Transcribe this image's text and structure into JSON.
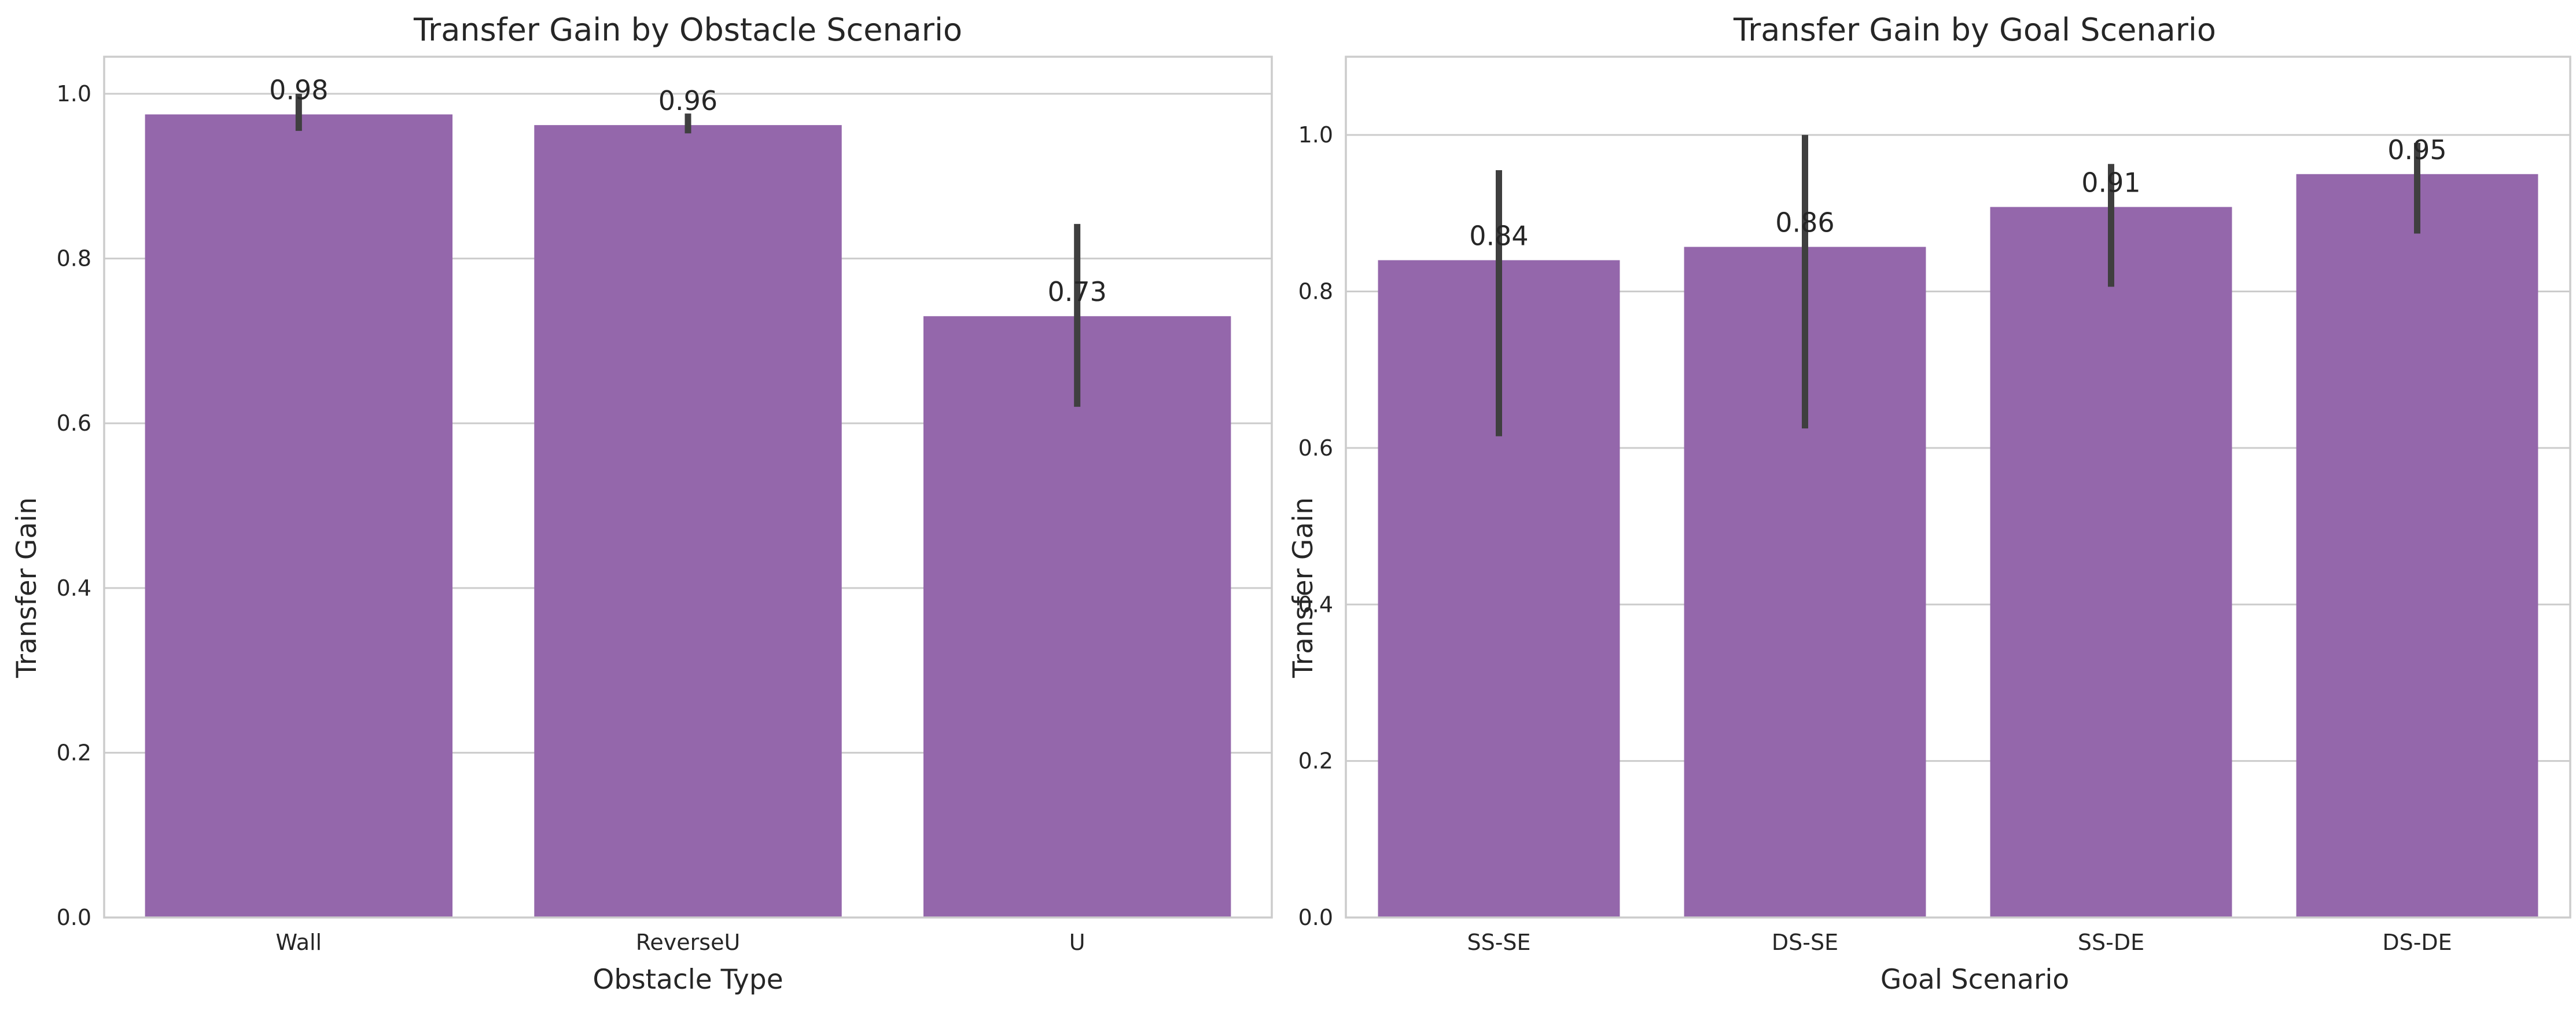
{
  "chart_data": [
    {
      "type": "bar",
      "title": "Transfer Gain by Obstacle Scenario",
      "xlabel": "Obstacle Type",
      "ylabel": "Transfer Gain",
      "categories": [
        "Wall",
        "ReverseU",
        "U"
      ],
      "values": [
        0.975,
        0.962,
        0.73
      ],
      "value_labels": [
        "0.98",
        "0.96",
        "0.73"
      ],
      "error_low": [
        0.955,
        0.952,
        0.62
      ],
      "error_high": [
        1.0,
        0.976,
        0.842
      ],
      "ylim": [
        0,
        1.045
      ],
      "yticks": [
        0.0,
        0.2,
        0.4,
        0.6,
        0.8,
        1.0
      ],
      "ytick_labels": [
        "0.0",
        "0.2",
        "0.4",
        "0.6",
        "0.8",
        "1.0"
      ],
      "grid": true,
      "bar_color": "#9467ab"
    },
    {
      "type": "bar",
      "title": "Transfer Gain by Goal Scenario",
      "xlabel": "Goal Scenario",
      "ylabel": "Transfer Gain",
      "categories": [
        "SS-SE",
        "DS-SE",
        "SS-DE",
        "DS-DE"
      ],
      "values": [
        0.84,
        0.857,
        0.908,
        0.95
      ],
      "value_labels": [
        "0.84",
        "0.86",
        "0.91",
        "0.95"
      ],
      "error_low": [
        0.615,
        0.625,
        0.806,
        0.874
      ],
      "error_high": [
        0.955,
        1.0,
        0.963,
        0.99
      ],
      "ylim": [
        0,
        1.1
      ],
      "yticks": [
        0.0,
        0.2,
        0.4,
        0.6,
        0.8,
        1.0
      ],
      "ytick_labels": [
        "0.0",
        "0.2",
        "0.4",
        "0.6",
        "0.8",
        "1.0"
      ],
      "grid": true,
      "bar_color": "#9467ab"
    }
  ]
}
